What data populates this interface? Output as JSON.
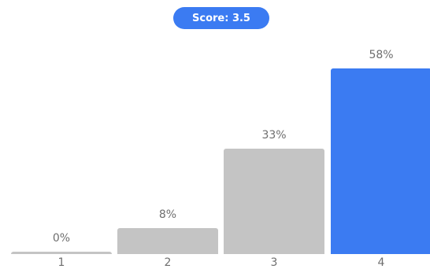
{
  "score": {
    "label": "Score: 3.5"
  },
  "chart_data": {
    "type": "bar",
    "categories": [
      "1",
      "2",
      "3",
      "4"
    ],
    "values": [
      0,
      8,
      33,
      58
    ],
    "value_labels": [
      "0%",
      "8%",
      "33%",
      "58%"
    ],
    "highlight_index": 3,
    "ylim": [
      0,
      58
    ],
    "colors": {
      "default": "#c4c4c4",
      "highlight": "#3b7bf2",
      "label_text": "#6e6e6e"
    },
    "grid": false,
    "legend": "none"
  },
  "colors": {
    "accent": "#3b7bf2"
  }
}
